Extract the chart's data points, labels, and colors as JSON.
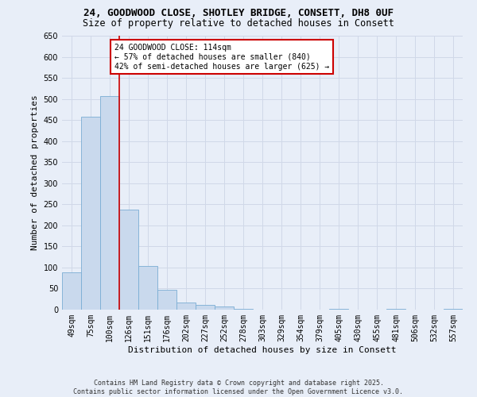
{
  "title_line1": "24, GOODWOOD CLOSE, SHOTLEY BRIDGE, CONSETT, DH8 0UF",
  "title_line2": "Size of property relative to detached houses in Consett",
  "xlabel": "Distribution of detached houses by size in Consett",
  "ylabel": "Number of detached properties",
  "categories": [
    "49sqm",
    "75sqm",
    "100sqm",
    "126sqm",
    "151sqm",
    "176sqm",
    "202sqm",
    "227sqm",
    "252sqm",
    "278sqm",
    "303sqm",
    "329sqm",
    "354sqm",
    "379sqm",
    "405sqm",
    "430sqm",
    "455sqm",
    "481sqm",
    "506sqm",
    "532sqm",
    "557sqm"
  ],
  "values": [
    88,
    458,
    507,
    238,
    103,
    47,
    17,
    12,
    8,
    1,
    0,
    0,
    0,
    0,
    1,
    0,
    0,
    1,
    0,
    0,
    1
  ],
  "bar_color": "#c9d9ed",
  "bar_edge_color": "#7aadd4",
  "red_line_x": 2.5,
  "annotation_text": "24 GOODWOOD CLOSE: 114sqm\n← 57% of detached houses are smaller (840)\n42% of semi-detached houses are larger (625) →",
  "annotation_box_color": "#ffffff",
  "annotation_box_edge_color": "#cc0000",
  "red_line_color": "#cc0000",
  "ylim": [
    0,
    650
  ],
  "yticks": [
    0,
    50,
    100,
    150,
    200,
    250,
    300,
    350,
    400,
    450,
    500,
    550,
    600,
    650
  ],
  "grid_color": "#d0d8e8",
  "background_color": "#e8eef8",
  "footer_line1": "Contains HM Land Registry data © Crown copyright and database right 2025.",
  "footer_line2": "Contains public sector information licensed under the Open Government Licence v3.0.",
  "title_fontsize": 9,
  "subtitle_fontsize": 8.5,
  "axis_label_fontsize": 8,
  "tick_fontsize": 7,
  "annotation_fontsize": 7,
  "footer_fontsize": 6
}
